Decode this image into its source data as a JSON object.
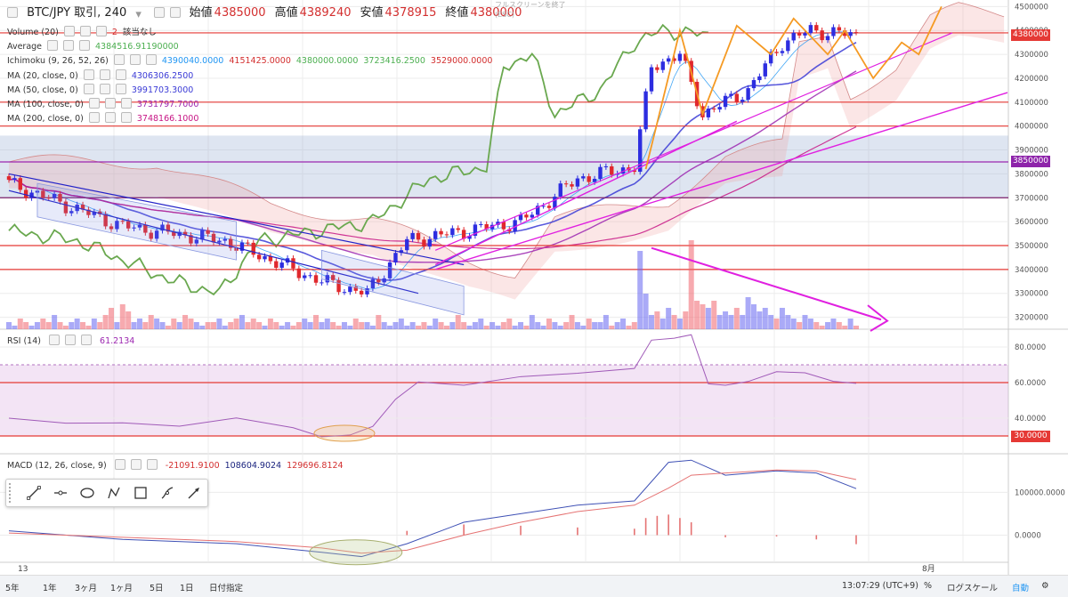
{
  "header": {
    "symbol": "BTC/JPY 取引, 240",
    "ohlc": [
      {
        "k": "始値",
        "v": "4385000"
      },
      {
        "k": "高値",
        "v": "4389240"
      },
      {
        "k": "安値",
        "v": "4378915"
      },
      {
        "k": "終値",
        "v": "4380000"
      }
    ]
  },
  "tooltip": {
    "line1": "フルスクリーンを終了",
    "line2": "(ESC)"
  },
  "legends": [
    {
      "name": "Volume (20)",
      "values": [
        {
          "text": "2",
          "color": "#d32f2f"
        },
        {
          "text": "該当なし",
          "color": "#333"
        }
      ]
    },
    {
      "name": "Average",
      "values": [
        {
          "text": "4384516.91190000",
          "color": "#4caf50"
        }
      ]
    },
    {
      "name": "Ichimoku (9, 26, 52, 26)",
      "values": [
        {
          "text": "4390040.0000",
          "color": "#2196f3"
        },
        {
          "text": "4151425.0000",
          "color": "#d32f2f"
        },
        {
          "text": "4380000.0000",
          "color": "#4caf50"
        },
        {
          "text": "3723416.2500",
          "color": "#4caf50"
        },
        {
          "text": "3529000.0000",
          "color": "#d32f2f"
        }
      ]
    },
    {
      "name": "MA (20, close, 0)",
      "values": [
        {
          "text": "4306306.2500",
          "color": "#3b3bd6"
        }
      ]
    },
    {
      "name": "MA (50, close, 0)",
      "values": [
        {
          "text": "3991703.3000",
          "color": "#3b3bd6"
        }
      ]
    },
    {
      "name": "MA (100, close, 0)",
      "values": [
        {
          "text": "3731797.7000",
          "color": "#9c27b0"
        }
      ]
    },
    {
      "name": "MA (200, close, 0)",
      "values": [
        {
          "text": "3748166.1000",
          "color": "#c71585"
        }
      ]
    }
  ],
  "rsi_legend": {
    "name": "RSI (14)",
    "value": "61.2134"
  },
  "macd_legend": {
    "name": "MACD (12, 26, close, 9)",
    "values": [
      {
        "text": "-21091.9100",
        "color": "#d32f2f"
      },
      {
        "text": "108604.9024",
        "color": "#1a237e"
      },
      {
        "text": "129696.8124",
        "color": "#d32f2f"
      }
    ]
  },
  "price_tags": [
    {
      "text": "4380000",
      "color": "#e53935",
      "price": 4380000
    },
    {
      "text": "3850000",
      "color": "#8e24aa",
      "price": 3850000
    }
  ],
  "rsi_tag": {
    "text": "30.0000",
    "color": "#e53935"
  },
  "bottom_bar": {
    "ranges": [
      "5年",
      "1年",
      "3ヶ月",
      "1ヶ月",
      "5日",
      "1日",
      "日付指定"
    ],
    "time": "13:07:29 (UTC+9)",
    "percent": "%",
    "log": "ログスケール",
    "auto": "自動"
  },
  "x_labels": {
    "start": "13",
    "aug": "8月"
  },
  "chart_data": [
    {
      "type": "candlestick",
      "title": "BTC/JPY 取引, 240",
      "ylim": [
        3150000,
        4520000
      ],
      "yticks": [
        3200000,
        3300000,
        3400000,
        3500000,
        3600000,
        3700000,
        3800000,
        3900000,
        4000000,
        4100000,
        4200000,
        4300000,
        4400000,
        4500000
      ],
      "ytick_labels": [
        "3200000",
        "3300000",
        "3400000",
        "3500000",
        "3600000",
        "3700000",
        "3800000",
        "3900000",
        "4000000",
        "4100000",
        "4200000",
        "4300000",
        "4400000",
        "4500000"
      ],
      "horizontal_lines": [
        {
          "price": 4390000,
          "color": "#e53935"
        },
        {
          "price": 4100000,
          "color": "#e53935"
        },
        {
          "price": 4000000,
          "color": "#e53935"
        },
        {
          "price": 3850000,
          "color": "#9c27b0"
        },
        {
          "price": 3700000,
          "color": "#7b1f6a"
        },
        {
          "price": 3500000,
          "color": "#e53935"
        },
        {
          "price": 3400000,
          "color": "#e53935"
        }
      ],
      "band": [
        3700000,
        3960000
      ],
      "key_closes": [
        {
          "bar": 0,
          "price": 3760000
        },
        {
          "bar": 20,
          "price": 3580000
        },
        {
          "bar": 38,
          "price": 3520000
        },
        {
          "bar": 55,
          "price": 3350000
        },
        {
          "bar": 63,
          "price": 3300000
        },
        {
          "bar": 70,
          "price": 3520000
        },
        {
          "bar": 90,
          "price": 3600000
        },
        {
          "bar": 100,
          "price": 3780000
        },
        {
          "bar": 110,
          "price": 3830000
        },
        {
          "bar": 113,
          "price": 4250000
        },
        {
          "bar": 118,
          "price": 4300000
        },
        {
          "bar": 122,
          "price": 4050000
        },
        {
          "bar": 130,
          "price": 4150000
        },
        {
          "bar": 136,
          "price": 4350000
        },
        {
          "bar": 141,
          "price": 4400000
        },
        {
          "bar": 149,
          "price": 4380000
        }
      ],
      "volume_levels": [
        2,
        1,
        3,
        2,
        1,
        2,
        3,
        2,
        4,
        2,
        1,
        2,
        3,
        2,
        1,
        3,
        2,
        4,
        6,
        2,
        7,
        5,
        2,
        3,
        2,
        4,
        3,
        2,
        1,
        3,
        2,
        4,
        3,
        2,
        1,
        2,
        2,
        3,
        1,
        2,
        3,
        4,
        2,
        3,
        2,
        1,
        3,
        2,
        1,
        2,
        1,
        2,
        3,
        2,
        4,
        2,
        3,
        2,
        1,
        2,
        1,
        3,
        2,
        2,
        1,
        4,
        2,
        1,
        2,
        3,
        1,
        2,
        1,
        2,
        1,
        3,
        2,
        1,
        2,
        4,
        2,
        1,
        2,
        3,
        1,
        2,
        1,
        2,
        3,
        1,
        2,
        1,
        4,
        2,
        1,
        3,
        2,
        1,
        2,
        4,
        2,
        1,
        3,
        2,
        2,
        4,
        1,
        2,
        3,
        1,
        2,
        22,
        10,
        4,
        5,
        3,
        6,
        4,
        3,
        5,
        25,
        8,
        7,
        6,
        8,
        4,
        5,
        4,
        6,
        4,
        9,
        7,
        5,
        6,
        4,
        3,
        6,
        4,
        3,
        2,
        4,
        3,
        2,
        1,
        2,
        3,
        2,
        1,
        3,
        1
      ],
      "volume_colors_by_bar": "up=blue,down=red"
    },
    {
      "type": "line",
      "title": "RSI (14)",
      "ylim": [
        20,
        90
      ],
      "yticks": [
        40,
        60,
        80
      ],
      "ytick_labels": [
        "40.0000",
        "60.0000",
        "80.0000"
      ],
      "levels": [
        30,
        60,
        70
      ],
      "series": [
        {
          "name": "RSI (14)",
          "points": [
            [
              0,
              40
            ],
            [
              10,
              38
            ],
            [
              20,
              36
            ],
            [
              30,
              37
            ],
            [
              40,
              39
            ],
            [
              50,
              35
            ],
            [
              55,
              31
            ],
            [
              60,
              31
            ],
            [
              64,
              34
            ],
            [
              68,
              52
            ],
            [
              72,
              60
            ],
            [
              80,
              60
            ],
            [
              90,
              62
            ],
            [
              100,
              66
            ],
            [
              110,
              68
            ],
            [
              113,
              84
            ],
            [
              117,
              86
            ],
            [
              120,
              86
            ],
            [
              123,
              60
            ],
            [
              126,
              58
            ],
            [
              130,
              62
            ],
            [
              135,
              66
            ],
            [
              140,
              64
            ],
            [
              145,
              60
            ],
            [
              149,
              61
            ]
          ]
        }
      ]
    },
    {
      "type": "line",
      "title": "MACD (12, 26, close, 9)",
      "ylim": [
        -80000,
        190000
      ],
      "yticks": [
        0,
        100000
      ],
      "ytick_labels": [
        "0.0000",
        "100000.0000"
      ],
      "series": [
        {
          "name": "MACD",
          "points": [
            [
              0,
              10000
            ],
            [
              20,
              -10000
            ],
            [
              40,
              -20000
            ],
            [
              55,
              -40000
            ],
            [
              62,
              -50000
            ],
            [
              70,
              -20000
            ],
            [
              80,
              30000
            ],
            [
              90,
              50000
            ],
            [
              100,
              70000
            ],
            [
              110,
              80000
            ],
            [
              116,
              170000
            ],
            [
              120,
              175000
            ],
            [
              126,
              140000
            ],
            [
              135,
              150000
            ],
            [
              142,
              145000
            ],
            [
              149,
              108605
            ]
          ]
        },
        {
          "name": "Signal",
          "points": [
            [
              0,
              5000
            ],
            [
              20,
              -5000
            ],
            [
              40,
              -15000
            ],
            [
              55,
              -30000
            ],
            [
              62,
              -42000
            ],
            [
              70,
              -35000
            ],
            [
              80,
              0
            ],
            [
              90,
              30000
            ],
            [
              100,
              55000
            ],
            [
              110,
              70000
            ],
            [
              116,
              110000
            ],
            [
              120,
              140000
            ],
            [
              126,
              145000
            ],
            [
              135,
              152000
            ],
            [
              142,
              150000
            ],
            [
              149,
              129697
            ]
          ]
        }
      ],
      "histogram": [
        [
          70,
          10000
        ],
        [
          80,
          25000
        ],
        [
          90,
          22000
        ],
        [
          100,
          18000
        ],
        [
          110,
          15000
        ],
        [
          112,
          40000
        ],
        [
          114,
          45000
        ],
        [
          116,
          48000
        ],
        [
          118,
          40000
        ],
        [
          120,
          30000
        ],
        [
          126,
          -5000
        ],
        [
          135,
          -3000
        ],
        [
          142,
          -10000
        ],
        [
          149,
          -21092
        ]
      ]
    }
  ],
  "colors": {
    "up": "#2d2de0",
    "down": "#e0282d",
    "grid": "#ececec",
    "axis_text": "#555"
  }
}
